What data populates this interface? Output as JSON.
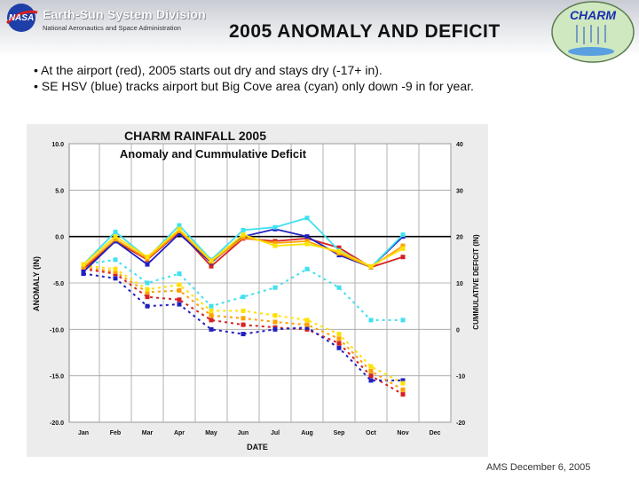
{
  "header": {
    "org_title": "Earth-Sun System Division",
    "org_subtitle": "National Aeronautics and Space Administration",
    "slide_title": "2005 ANOMALY AND DEFICIT",
    "nasa_logo_text": "NASA",
    "charm_logo_text": "CHARM"
  },
  "bullets": [
    "• At the airport (red), 2005 starts out dry and stays dry (-17+ in).",
    "• SE HSV (blue) tracks airport but Big Cove area (cyan) only down -9 in for year."
  ],
  "footer": "AMS December 6, 2005",
  "colors": {
    "red": "#d62020",
    "blue": "#2020c0",
    "cyan": "#40e0f0",
    "orange": "#ffa000",
    "yellow": "#ffe000",
    "grid": "#a0a0a0",
    "plot_bg": "#ffffff",
    "chart_bg": "#ececec"
  },
  "chart_data": {
    "type": "line",
    "title": "CHARM RAINFALL 2005",
    "subtitle": "Anomaly and Cummulative Deficit",
    "xlabel": "DATE",
    "ylabel_left": "ANOMALY (IN)",
    "ylabel_right": "CUMMULATIVE DEFICIT (IN)",
    "categories": [
      "Jan",
      "Feb",
      "Mar",
      "Apr",
      "May",
      "Jun",
      "Jul",
      "Aug",
      "Sep",
      "Oct",
      "Nov",
      "Dec"
    ],
    "ylim_left": [
      -20,
      10
    ],
    "ylim_right": [
      -20,
      40
    ],
    "left_ticks": [
      "10.0",
      "5.0",
      "0.0",
      "-5.0",
      "-10.0",
      "-15.0",
      "-20.0"
    ],
    "right_ticks": [
      "40",
      "30",
      "20",
      "10",
      "0",
      "-10",
      "-20"
    ],
    "grid": true,
    "anomaly_series": [
      {
        "color": "red",
        "values": [
          -3.5,
          -0.5,
          -2.5,
          0.5,
          -3.2,
          -0.2,
          -0.5,
          -0.2,
          -1.2,
          -3.3,
          -2.2,
          null
        ]
      },
      {
        "color": "blue",
        "values": [
          -3.8,
          -0.5,
          -3.0,
          0.3,
          -2.8,
          0.0,
          0.8,
          0.0,
          -2.0,
          -3.3,
          0.0,
          null
        ]
      },
      {
        "color": "cyan",
        "values": [
          -3.0,
          0.5,
          -2.3,
          1.2,
          -2.5,
          0.7,
          1.0,
          2.0,
          -1.5,
          -3.3,
          0.2,
          null
        ]
      },
      {
        "color": "orange",
        "values": [
          -3.3,
          -0.3,
          -2.4,
          0.6,
          -2.7,
          -0.1,
          -0.7,
          -0.5,
          -1.8,
          -3.3,
          -1.0,
          null
        ]
      },
      {
        "color": "yellow",
        "values": [
          -3.0,
          0.0,
          -2.2,
          0.8,
          -2.6,
          0.2,
          -1.0,
          -0.8,
          -1.6,
          -3.2,
          -1.3,
          null
        ]
      }
    ],
    "deficit_series": [
      {
        "color": "red",
        "values": [
          -3.5,
          -4.0,
          -6.5,
          -6.8,
          -9.0,
          -9.5,
          -9.8,
          -10.0,
          -11.5,
          -15.0,
          -17.0,
          null
        ]
      },
      {
        "color": "blue",
        "values": [
          -4.0,
          -4.5,
          -7.5,
          -7.3,
          -10.0,
          -10.5,
          -10.0,
          -9.8,
          -12.0,
          -15.5,
          -15.5,
          null
        ]
      },
      {
        "color": "cyan",
        "values": [
          -3.0,
          -2.5,
          -5.0,
          -4.0,
          -7.5,
          -6.5,
          -5.5,
          -3.5,
          -5.5,
          -9.0,
          -9.0,
          null
        ]
      },
      {
        "color": "orange",
        "values": [
          -3.3,
          -3.8,
          -6.0,
          -5.8,
          -8.5,
          -8.8,
          -9.2,
          -9.5,
          -11.0,
          -14.5,
          -16.5,
          null
        ]
      },
      {
        "color": "yellow",
        "values": [
          -3.1,
          -3.5,
          -5.7,
          -5.2,
          -8.0,
          -8.0,
          -8.5,
          -9.0,
          -10.5,
          -14.0,
          -15.8,
          null
        ]
      }
    ]
  }
}
